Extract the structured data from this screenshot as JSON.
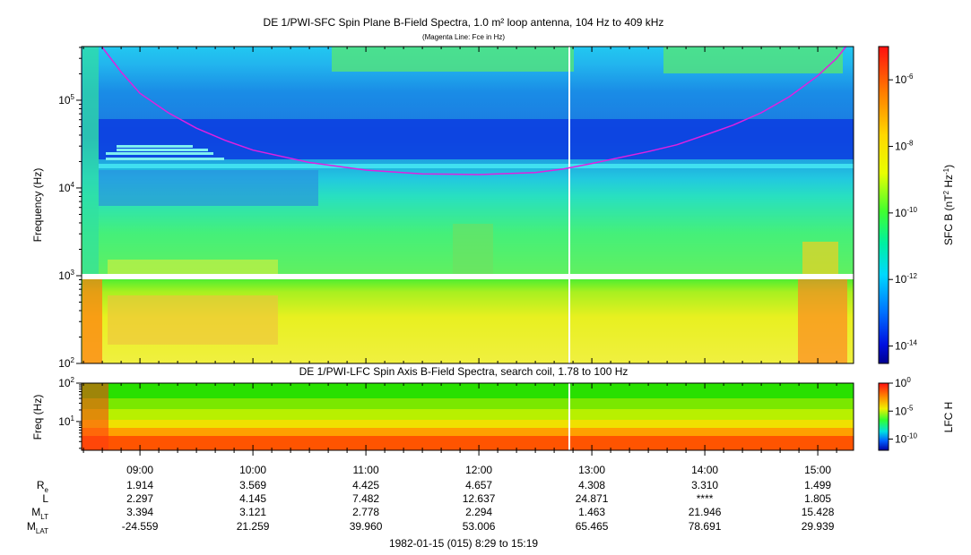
{
  "chart_data": [
    {
      "type": "heatmap",
      "title": "DE 1/PWI-SFC  Spin Plane B-Field Spectra, 1.0 m² loop antenna, 104 Hz to 409 kHz",
      "subtitle": "(Magenta Line: Fce in Hz)",
      "ylabel": "Frequency (Hz)",
      "y_scale": "log",
      "ylim": [
        100,
        409000
      ],
      "y_ticks": [
        {
          "v": 100,
          "label": "10",
          "exp": "2"
        },
        {
          "v": 1000,
          "label": "10",
          "exp": "3"
        },
        {
          "v": 10000,
          "label": "10",
          "exp": "4"
        },
        {
          "v": 100000,
          "label": "10",
          "exp": "5"
        }
      ],
      "colorbar": {
        "label": "SFC B (nT",
        "label_exp1": "2",
        "label_mid": " Hz",
        "label_exp2": "-1",
        "label_end": ")",
        "scale": "log",
        "range": [
          3e-15,
          1e-05
        ],
        "ticks": [
          {
            "v": 1e-06,
            "label": "10",
            "exp": "-6"
          },
          {
            "v": 1e-08,
            "label": "10",
            "exp": "-8"
          },
          {
            "v": 1e-10,
            "label": "10",
            "exp": "-10"
          },
          {
            "v": 1e-12,
            "label": "10",
            "exp": "-12"
          },
          {
            "v": 1e-14,
            "label": "10",
            "exp": "-14"
          }
        ]
      },
      "series": [
        {
          "name": "Fce",
          "x": [
            "08:40",
            "08:50",
            "09:00",
            "09:15",
            "09:30",
            "09:45",
            "10:00",
            "10:30",
            "11:00",
            "11:30",
            "12:00",
            "12:30",
            "12:45",
            "13:00",
            "13:30",
            "13:45",
            "14:00",
            "14:15",
            "14:30",
            "14:45",
            "15:00",
            "15:10",
            "15:15"
          ],
          "y": [
            400000,
            210000,
            120000,
            72000,
            48000,
            35000,
            27000,
            19500,
            16000,
            14500,
            14200,
            15000,
            16500,
            19000,
            26000,
            31000,
            40000,
            52000,
            72000,
            110000,
            190000,
            300000,
            409000
          ]
        }
      ],
      "color": "#e020e0"
    },
    {
      "type": "heatmap",
      "title": "DE 1/PWI-LFC  Spin Axis B-Field Spectra, search coil, 1.78 to 100 Hz",
      "ylabel": "Freq (Hz)",
      "y_scale": "log",
      "ylim": [
        1.78,
        100
      ],
      "y_ticks": [
        {
          "v": 10,
          "label": "10",
          "exp": "1"
        },
        {
          "v": 100,
          "label": "10",
          "exp": "2"
        }
      ],
      "colorbar": {
        "label": "LFC H",
        "scale": "log",
        "range": [
          1e-12,
          1
        ],
        "ticks": [
          {
            "v": 1,
            "label": "10",
            "exp": "0"
          },
          {
            "v": 1e-05,
            "label": "10",
            "exp": "-5"
          },
          {
            "v": 1e-10,
            "label": "10",
            "exp": "-10"
          }
        ]
      }
    }
  ],
  "x_axis": {
    "xlim": [
      "08:29",
      "15:19"
    ],
    "ticks": [
      "09:00",
      "10:00",
      "11:00",
      "12:00",
      "13:00",
      "14:00",
      "15:00"
    ],
    "caption": "1982-01-15 (015) 8:29 to 15:19"
  },
  "ephemeris": {
    "rows": [
      {
        "label": "R",
        "sub": "e",
        "values": [
          "1.914",
          "3.569",
          "4.425",
          "4.657",
          "4.308",
          "3.310",
          "1.499"
        ]
      },
      {
        "label": "L",
        "sub": "",
        "values": [
          "2.297",
          "4.145",
          "7.482",
          "12.637",
          "24.871",
          "****",
          "1.805"
        ]
      },
      {
        "label": "M",
        "sub": "LT",
        "values": [
          "3.394",
          "3.121",
          "2.778",
          "2.294",
          "1.463",
          "21.946",
          "15.428"
        ]
      },
      {
        "label": "M",
        "sub": "LAT",
        "values": [
          "-24.559",
          "21.259",
          "39.960",
          "53.006",
          "65.465",
          "78.691",
          "29.939"
        ]
      }
    ]
  }
}
